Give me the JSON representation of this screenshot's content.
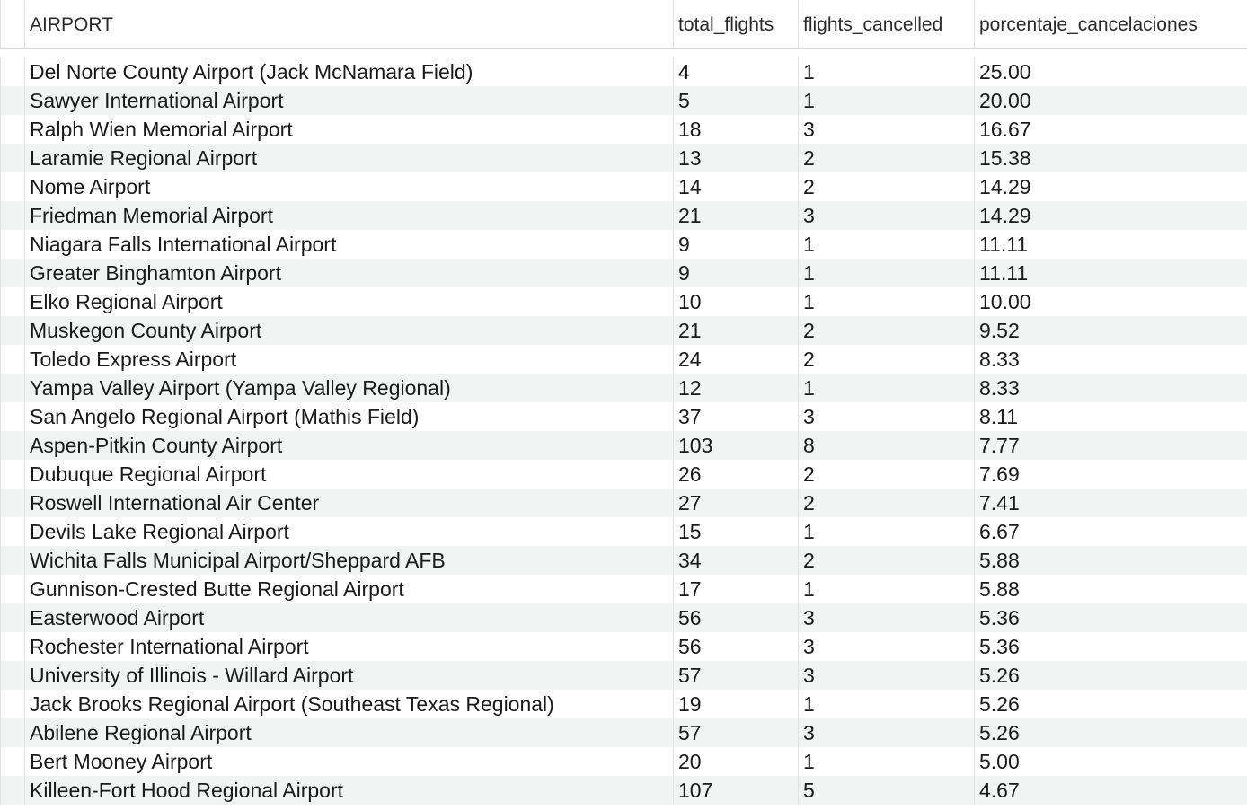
{
  "table": {
    "columns": [
      "AIRPORT",
      "total_flights",
      "flights_cancelled",
      "porcentaje_cancelaciones"
    ],
    "rows": [
      [
        "Del Norte County Airport (Jack McNamara Field)",
        "4",
        "1",
        "25.00"
      ],
      [
        "Sawyer International Airport",
        "5",
        "1",
        "20.00"
      ],
      [
        "Ralph Wien Memorial Airport",
        "18",
        "3",
        "16.67"
      ],
      [
        "Laramie Regional Airport",
        "13",
        "2",
        "15.38"
      ],
      [
        "Nome Airport",
        "14",
        "2",
        "14.29"
      ],
      [
        "Friedman Memorial Airport",
        "21",
        "3",
        "14.29"
      ],
      [
        "Niagara Falls International Airport",
        "9",
        "1",
        "11.11"
      ],
      [
        "Greater Binghamton Airport",
        "9",
        "1",
        "11.11"
      ],
      [
        "Elko Regional Airport",
        "10",
        "1",
        "10.00"
      ],
      [
        "Muskegon County Airport",
        "21",
        "2",
        "9.52"
      ],
      [
        "Toledo Express Airport",
        "24",
        "2",
        "8.33"
      ],
      [
        "Yampa Valley Airport (Yampa Valley Regional)",
        "12",
        "1",
        "8.33"
      ],
      [
        "San Angelo Regional Airport (Mathis Field)",
        "37",
        "3",
        "8.11"
      ],
      [
        "Aspen-Pitkin County Airport",
        "103",
        "8",
        "7.77"
      ],
      [
        "Dubuque Regional Airport",
        "26",
        "2",
        "7.69"
      ],
      [
        "Roswell International Air Center",
        "27",
        "2",
        "7.41"
      ],
      [
        "Devils Lake Regional Airport",
        "15",
        "1",
        "6.67"
      ],
      [
        "Wichita Falls Municipal Airport/Sheppard AFB",
        "34",
        "2",
        "5.88"
      ],
      [
        "Gunnison-Crested Butte Regional Airport",
        "17",
        "1",
        "5.88"
      ],
      [
        "Easterwood Airport",
        "56",
        "3",
        "5.36"
      ],
      [
        "Rochester International Airport",
        "56",
        "3",
        "5.36"
      ],
      [
        "University of Illinois - Willard Airport",
        "57",
        "3",
        "5.26"
      ],
      [
        "Jack Brooks Regional Airport (Southeast Texas Regional)",
        "19",
        "1",
        "5.26"
      ],
      [
        "Abilene Regional Airport",
        "57",
        "3",
        "5.26"
      ],
      [
        "Bert Mooney Airport",
        "20",
        "1",
        "5.00"
      ],
      [
        "Killeen-Fort Hood Regional Airport",
        "107",
        "5",
        "4.67"
      ]
    ]
  }
}
